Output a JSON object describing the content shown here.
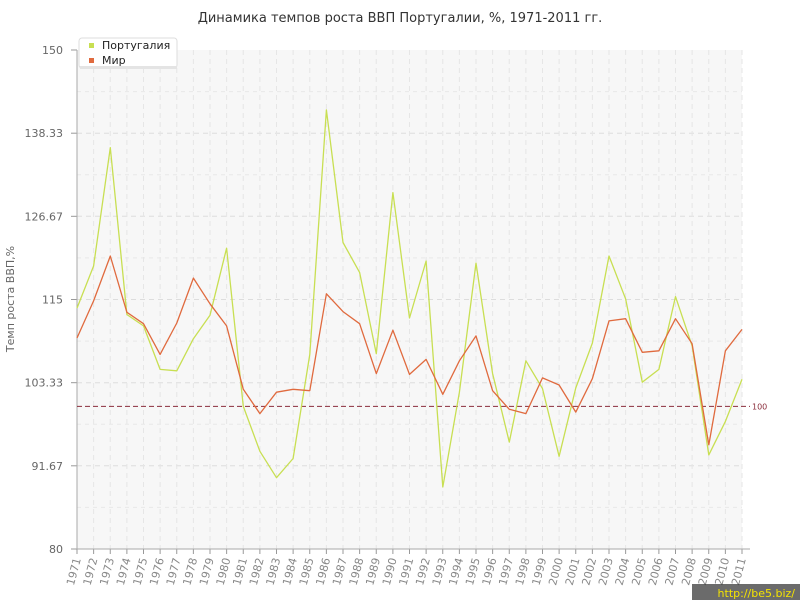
{
  "chart_data": {
    "type": "line",
    "title": "Динамика темпов роста ВВП Португалии, %, 1971-2011 гг.",
    "ylabel": "Темп роста ВВП,%",
    "xlabel": "",
    "ylim": [
      80,
      150
    ],
    "y_ticks": [
      "80",
      "91.67",
      "103.33",
      "115",
      "126.67",
      "138.33",
      "150"
    ],
    "grid": true,
    "legend_position": "top-left",
    "categories": [
      "1971",
      "1972",
      "1973",
      "1974",
      "1975",
      "1976",
      "1977",
      "1978",
      "1979",
      "1980",
      "1981",
      "1982",
      "1983",
      "1984",
      "1985",
      "1986",
      "1987",
      "1988",
      "1989",
      "1990",
      "1991",
      "1992",
      "1993",
      "1994",
      "1995",
      "1996",
      "1997",
      "1998",
      "1999",
      "2000",
      "2001",
      "2002",
      "2003",
      "2004",
      "2005",
      "2006",
      "2007",
      "2008",
      "2009",
      "2010",
      "2011"
    ],
    "series": [
      {
        "name": "Португалия",
        "color": "#c8df52",
        "values": [
          113.8,
          119.7,
          136.3,
          112.9,
          111.3,
          105.2,
          105.0,
          109.5,
          112.8,
          122.2,
          100.0,
          93.7,
          90.0,
          92.7,
          107.3,
          141.6,
          123.0,
          118.8,
          107.4,
          130.0,
          112.4,
          120.4,
          88.7,
          102.0,
          120.1,
          104.6,
          95.0,
          106.4,
          102.5,
          93.0,
          102.6,
          108.9,
          121.1,
          115.1,
          103.4,
          105.2,
          115.4,
          108.5,
          93.2,
          97.9,
          103.8
        ]
      },
      {
        "name": "Мир",
        "color": "#e06a3e",
        "values": [
          109.6,
          114.8,
          121.1,
          113.2,
          111.6,
          107.3,
          111.7,
          118.0,
          114.4,
          111.3,
          102.4,
          99.0,
          102.0,
          102.4,
          102.2,
          115.8,
          113.3,
          111.6,
          104.6,
          110.7,
          104.5,
          106.6,
          101.7,
          106.4,
          109.9,
          102.2,
          99.6,
          99.0,
          104.0,
          103.0,
          99.2,
          103.9,
          112.0,
          112.3,
          107.6,
          107.8,
          112.3,
          108.8,
          94.6,
          107.8,
          110.8
        ]
      }
    ],
    "reference_line": {
      "value": 100,
      "label": "100",
      "color": "#8b2e3c"
    }
  },
  "watermark": "http://be5.biz/"
}
